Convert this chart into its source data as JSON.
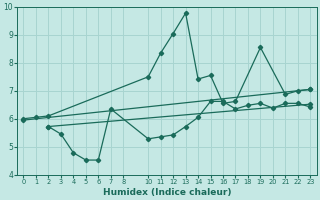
{
  "xlabel": "Humidex (Indice chaleur)",
  "bg_color": "#c5e8e4",
  "grid_color": "#a8d4d0",
  "line_color": "#1a6b5a",
  "ylim": [
    4,
    10
  ],
  "xlim": [
    -0.5,
    23.5
  ],
  "yticks": [
    4,
    5,
    6,
    7,
    8,
    9,
    10
  ],
  "xticks": [
    0,
    1,
    2,
    3,
    4,
    5,
    6,
    7,
    8,
    10,
    11,
    12,
    13,
    14,
    15,
    16,
    17,
    18,
    19,
    20,
    21,
    22,
    23
  ],
  "line1_x": [
    0,
    1,
    2,
    10,
    11,
    12,
    13,
    14,
    15,
    16,
    17,
    19,
    21,
    22,
    23
  ],
  "line1_y": [
    6.0,
    6.05,
    6.1,
    7.5,
    8.35,
    9.05,
    9.78,
    7.42,
    7.55,
    6.55,
    6.62,
    8.55,
    6.87,
    7.0,
    7.05
  ],
  "line2_x": [
    2,
    3,
    4,
    5,
    6,
    7,
    10,
    11,
    12,
    13,
    14,
    15,
    16,
    17,
    18,
    19,
    20,
    21,
    22,
    23
  ],
  "line2_y": [
    5.72,
    5.45,
    4.78,
    4.52,
    4.52,
    6.35,
    5.28,
    5.35,
    5.42,
    5.72,
    6.05,
    6.62,
    6.62,
    6.35,
    6.48,
    6.55,
    6.38,
    6.55,
    6.55,
    6.42
  ],
  "line3_x": [
    0,
    23
  ],
  "line3_y": [
    5.95,
    7.05
  ],
  "line4_x": [
    2,
    23
  ],
  "line4_y": [
    5.72,
    6.52
  ]
}
